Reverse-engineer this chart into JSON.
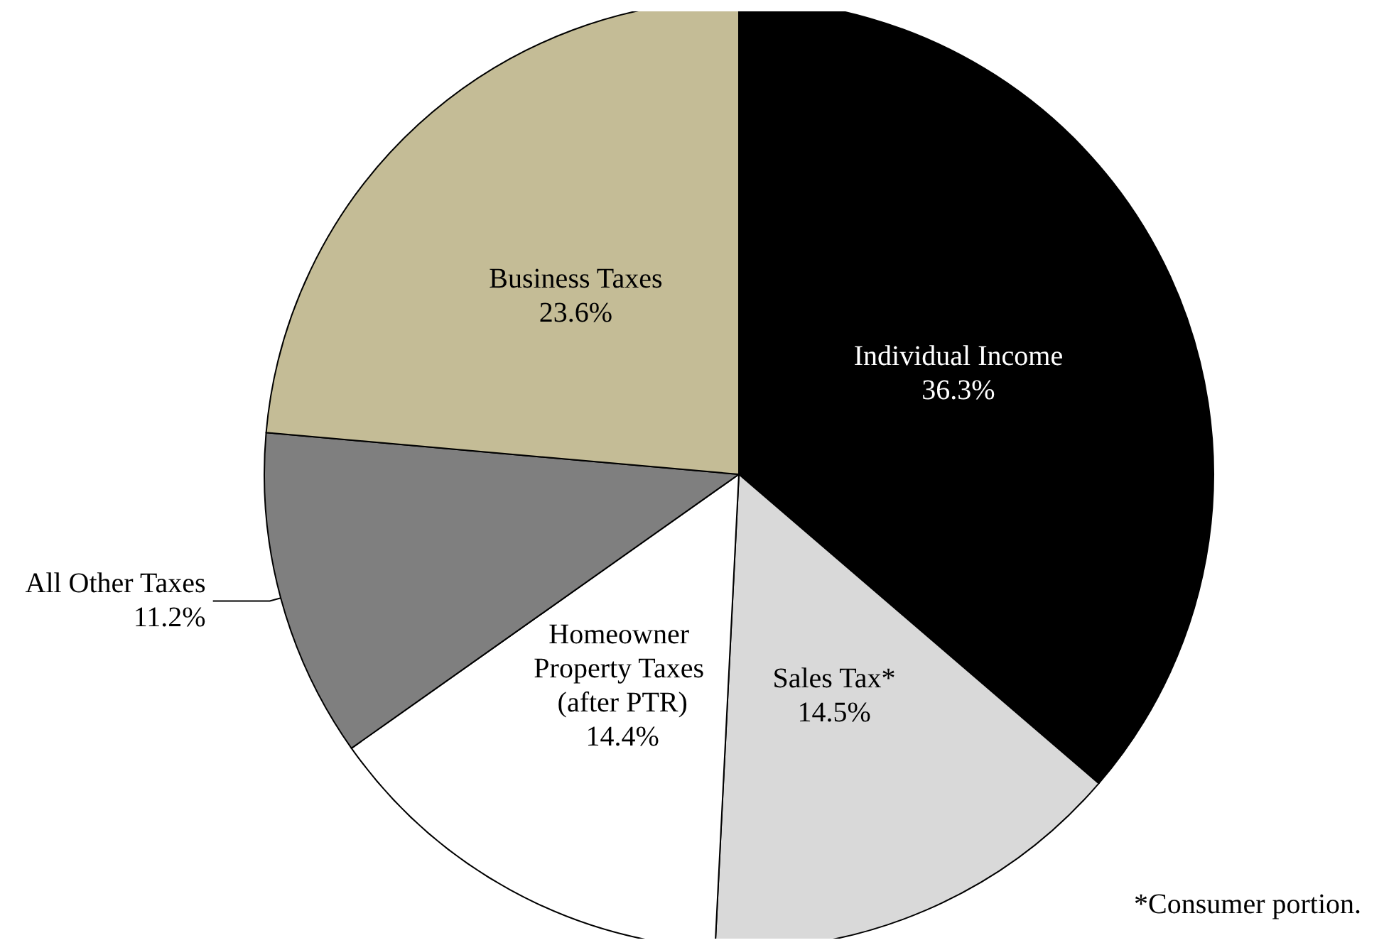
{
  "chart_data": {
    "type": "pie",
    "categories": [
      "Individual Income",
      "Sales Tax*",
      "Homeowner Property Taxes (after PTR)",
      "All Other Taxes",
      "Business Taxes"
    ],
    "values": [
      36.3,
      14.5,
      14.4,
      11.2,
      23.6
    ],
    "colors": [
      "#000000",
      "#d9d9d9",
      "#ffffff",
      "#7f7f7f",
      "#c4bc96"
    ],
    "value_labels": [
      "36.3%",
      "14.5%",
      "14.4%",
      "11.2%",
      "23.6%"
    ],
    "legend": false,
    "annotations": [
      "*Consumer portion."
    ]
  }
}
